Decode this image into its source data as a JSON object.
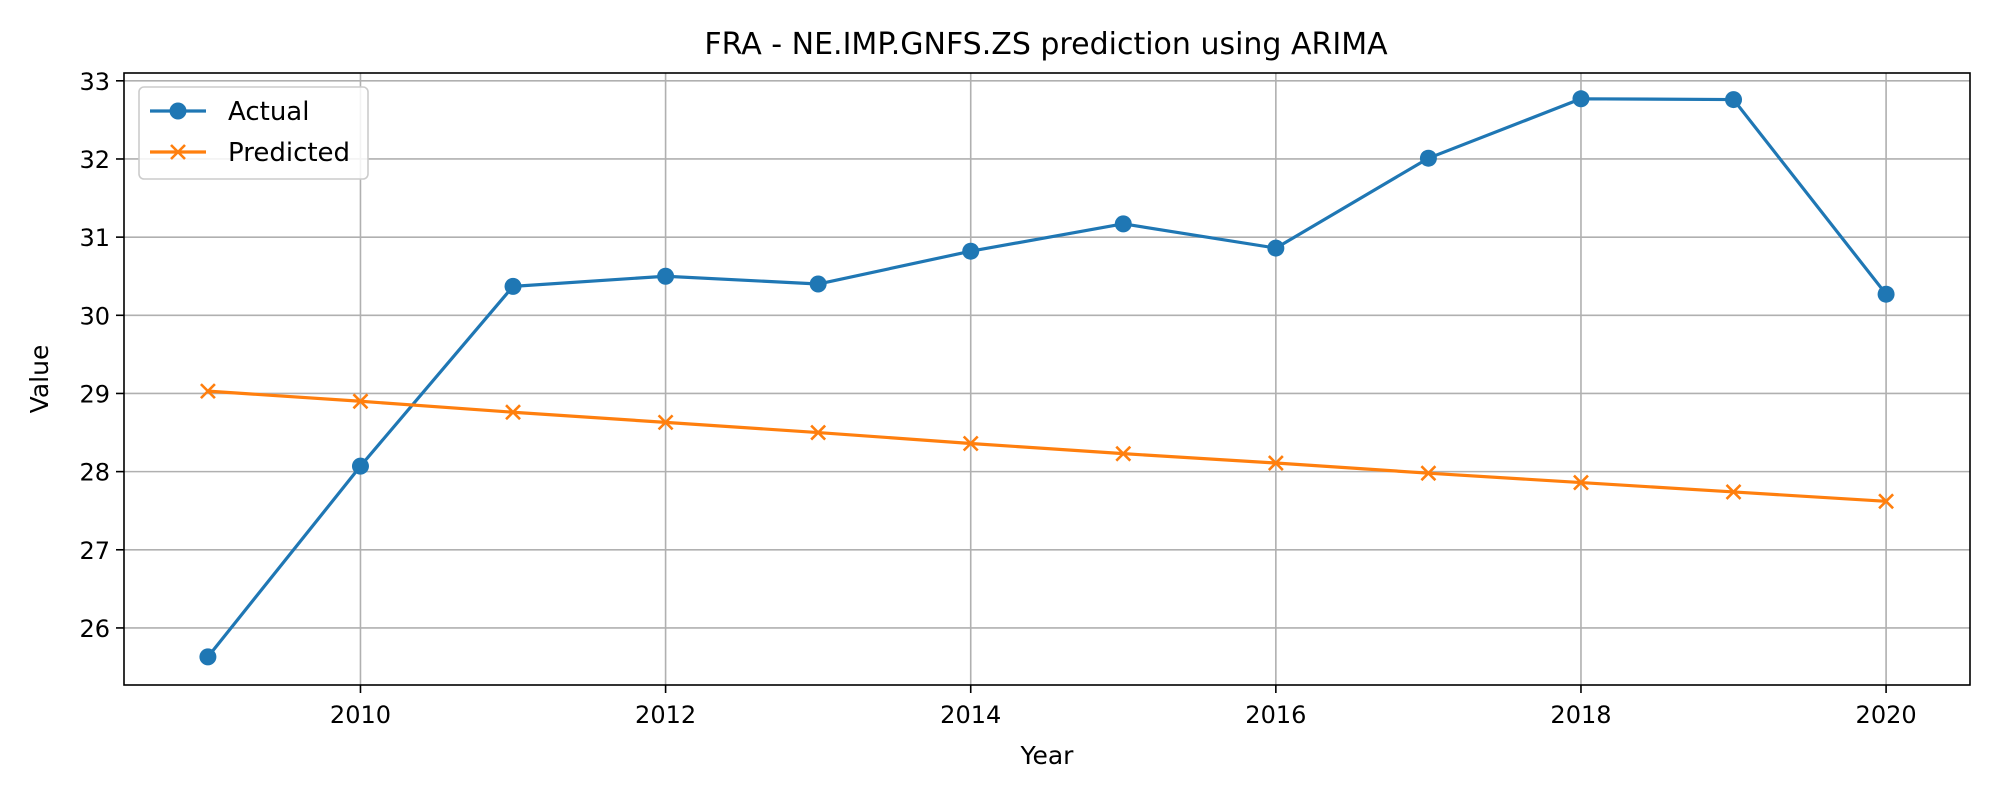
{
  "chart_data": {
    "type": "line",
    "title": "FRA - NE.IMP.GNFS.ZS prediction using ARIMA",
    "xlabel": "Year",
    "ylabel": "Value",
    "x": [
      2009,
      2010,
      2011,
      2012,
      2013,
      2014,
      2015,
      2016,
      2017,
      2018,
      2019,
      2020
    ],
    "xlim": [
      2008.45,
      2020.55
    ],
    "ylim": [
      25.27,
      33.1
    ],
    "xticks": [
      2010,
      2012,
      2014,
      2016,
      2018,
      2020
    ],
    "yticks": [
      26,
      27,
      28,
      29,
      30,
      31,
      32,
      33
    ],
    "grid": true,
    "legend_position": "top-left",
    "series": [
      {
        "name": "Actual",
        "color": "#1f77b4",
        "marker": "circle",
        "values": [
          25.63,
          28.07,
          30.37,
          30.5,
          30.4,
          30.82,
          31.17,
          30.86,
          32.01,
          32.77,
          32.76,
          30.27
        ]
      },
      {
        "name": "Predicted",
        "color": "#ff7f0e",
        "marker": "x",
        "values": [
          29.03,
          28.9,
          28.76,
          28.63,
          28.5,
          28.36,
          28.23,
          28.11,
          27.98,
          27.86,
          27.74,
          27.62
        ]
      }
    ]
  }
}
